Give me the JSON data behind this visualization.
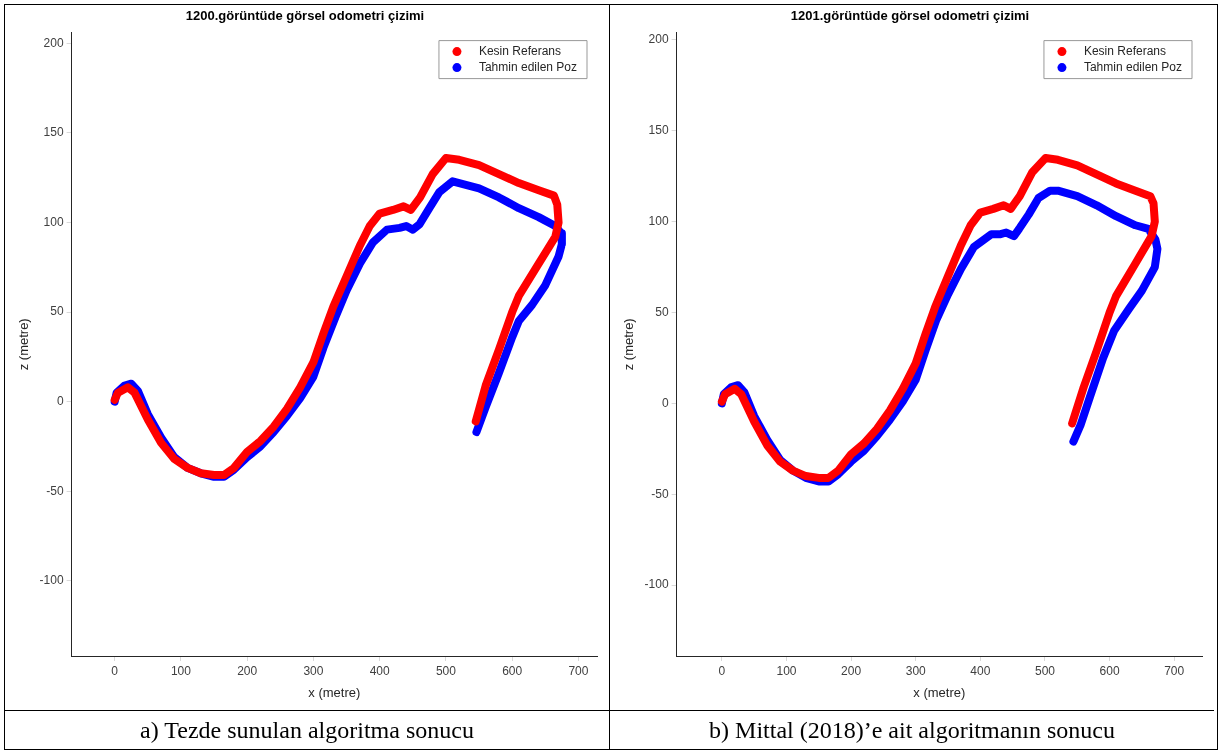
{
  "chart_data": [
    {
      "type": "line",
      "title": "1200.görüntüde görsel odometri çizimi",
      "xlabel": "x (metre)",
      "ylabel": "z (metre)",
      "annotations": [
        "a) Tezde sunulan algoritma sonucu"
      ],
      "xlim": [
        -65,
        728
      ],
      "ylim": [
        -142,
        206
      ],
      "xticks": [
        0,
        100,
        200,
        300,
        400,
        500,
        600,
        700
      ],
      "yticks": [
        -100,
        -50,
        0,
        50,
        100,
        150,
        200
      ],
      "legend": "top right",
      "series": [
        {
          "name": "Kesin Referans",
          "color": "#ff0000",
          "x": [
            0,
            5,
            20,
            30,
            50,
            70,
            90,
            110,
            130,
            150,
            165,
            180,
            200,
            220,
            240,
            260,
            280,
            300,
            315,
            330,
            350,
            370,
            385,
            400,
            420,
            436,
            447,
            461,
            480,
            500,
            520,
            550,
            580,
            610,
            640,
            663,
            668,
            670,
            665,
            640,
            610,
            600,
            580,
            560,
            545
          ],
          "values": [
            1,
            5,
            8,
            5,
            -10,
            -23,
            -32,
            -37,
            -40,
            -41,
            -41,
            -37,
            -28,
            -22,
            -14,
            -4,
            8,
            22,
            38,
            53,
            70,
            87,
            98,
            105,
            107,
            109,
            107,
            114,
            127,
            136,
            135,
            132,
            127,
            122,
            118,
            115,
            110,
            100,
            92,
            77,
            59,
            50,
            29,
            9,
            -11
          ]
        },
        {
          "name": "Tahmin edilen Poz",
          "color": "#0000ff",
          "x": [
            0,
            3,
            15,
            25,
            35,
            50,
            70,
            90,
            110,
            130,
            150,
            165,
            180,
            200,
            220,
            240,
            260,
            280,
            300,
            315,
            333,
            350,
            370,
            390,
            411,
            430,
            440,
            450,
            460,
            475,
            490,
            510,
            520,
            550,
            580,
            610,
            640,
            665,
            674,
            675,
            670,
            650,
            630,
            610,
            600,
            580,
            560,
            546
          ],
          "values": [
            0,
            5,
            9,
            10,
            6,
            -7,
            -20,
            -31,
            -37,
            -40,
            -42,
            -42,
            -38,
            -31,
            -25,
            -17,
            -8,
            2,
            14,
            30,
            47,
            62,
            77,
            89,
            96,
            97,
            98,
            96,
            99,
            108,
            117,
            123,
            122,
            119,
            114,
            108,
            103,
            98,
            94,
            88,
            81,
            65,
            54,
            45,
            36,
            16,
            -3,
            -17
          ]
        }
      ]
    },
    {
      "type": "line",
      "title": "1201.görüntüde görsel odometri çizimi",
      "xlabel": "x (metre)",
      "ylabel": "z (metre)",
      "annotations": [
        "b) Mittal (2018)’e ait algoritmanın sonucu"
      ],
      "xlim": [
        -70,
        743
      ],
      "ylim": [
        -139,
        204
      ],
      "xticks": [
        0,
        100,
        200,
        300,
        400,
        500,
        600,
        700
      ],
      "yticks": [
        -100,
        -50,
        0,
        50,
        100,
        150,
        200
      ],
      "legend": "top right",
      "series": [
        {
          "name": "Kesin Referans",
          "color": "#ff0000",
          "x": [
            0,
            5,
            20,
            30,
            50,
            70,
            90,
            110,
            130,
            150,
            165,
            180,
            200,
            220,
            240,
            260,
            280,
            300,
            315,
            330,
            350,
            370,
            385,
            400,
            420,
            436,
            447,
            461,
            480,
            501,
            520,
            550,
            580,
            610,
            640,
            663,
            668,
            670,
            665,
            640,
            610,
            600,
            580,
            560,
            542
          ],
          "values": [
            1,
            5,
            8,
            5,
            -10,
            -23,
            -32,
            -37,
            -40,
            -41,
            -41,
            -37,
            -28,
            -22,
            -14,
            -4,
            8,
            22,
            38,
            53,
            70,
            87,
            98,
            105,
            107,
            109,
            107,
            114,
            127,
            135,
            134,
            131,
            126,
            121,
            117,
            114,
            110,
            100,
            92,
            77,
            59,
            50,
            29,
            9,
            -11
          ]
        },
        {
          "name": "Tahmin edilen Poz",
          "color": "#0000ff",
          "x": [
            0,
            3,
            15,
            25,
            35,
            50,
            70,
            90,
            110,
            130,
            150,
            165,
            180,
            200,
            220,
            240,
            260,
            280,
            300,
            315,
            332,
            350,
            370,
            390,
            417,
            430,
            440,
            452,
            460,
            475,
            490,
            508,
            520,
            550,
            580,
            610,
            640,
            660,
            671,
            674,
            670,
            650,
            630,
            607,
            590,
            570,
            555,
            544
          ],
          "values": [
            0,
            5,
            9,
            10,
            6,
            -7,
            -20,
            -31,
            -37,
            -41,
            -43,
            -43,
            -39,
            -32,
            -26,
            -18,
            -9,
            1,
            13,
            29,
            46,
            60,
            74,
            86,
            93,
            93,
            94,
            92,
            96,
            104,
            113,
            117,
            117,
            114,
            109,
            103,
            98,
            96,
            90,
            85,
            75,
            62,
            52,
            40,
            25,
            4,
            -12,
            -21
          ]
        }
      ]
    }
  ]
}
